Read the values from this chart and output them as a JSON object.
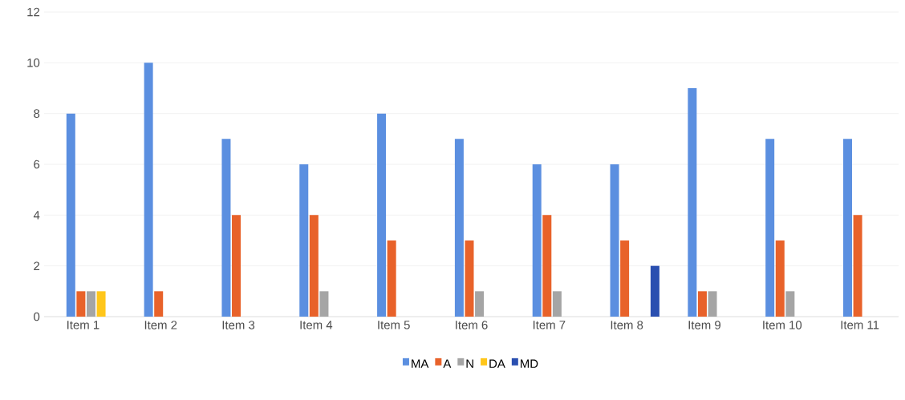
{
  "chart_data": {
    "type": "bar",
    "categories": [
      "Item 1",
      "Item 2",
      "Item 3",
      "Item 4",
      "Item 5",
      "Item 6",
      "Item 7",
      "Item 8",
      "Item 9",
      "Item 10",
      "Item 11"
    ],
    "series": [
      {
        "name": "MA",
        "color": "#5b8fe0",
        "values": [
          8,
          10,
          7,
          6,
          8,
          7,
          6,
          6,
          9,
          7,
          7
        ]
      },
      {
        "name": "A",
        "color": "#e8622a",
        "values": [
          1,
          1,
          4,
          4,
          3,
          3,
          4,
          3,
          1,
          3,
          4
        ]
      },
      {
        "name": "N",
        "color": "#a5a5a5",
        "values": [
          1,
          0,
          0,
          1,
          0,
          1,
          1,
          0,
          1,
          1,
          0
        ]
      },
      {
        "name": "DA",
        "color": "#ffc61a",
        "values": [
          1,
          0,
          0,
          0,
          0,
          0,
          0,
          0,
          0,
          0,
          0
        ]
      },
      {
        "name": "MD",
        "color": "#2a4fb0",
        "values": [
          0,
          0,
          0,
          0,
          0,
          0,
          0,
          2,
          0,
          0,
          0
        ]
      }
    ],
    "ylim": [
      0,
      12
    ],
    "yticks": [
      0,
      2,
      4,
      6,
      8,
      10,
      12
    ],
    "grid": "y",
    "legend": "bottom"
  }
}
